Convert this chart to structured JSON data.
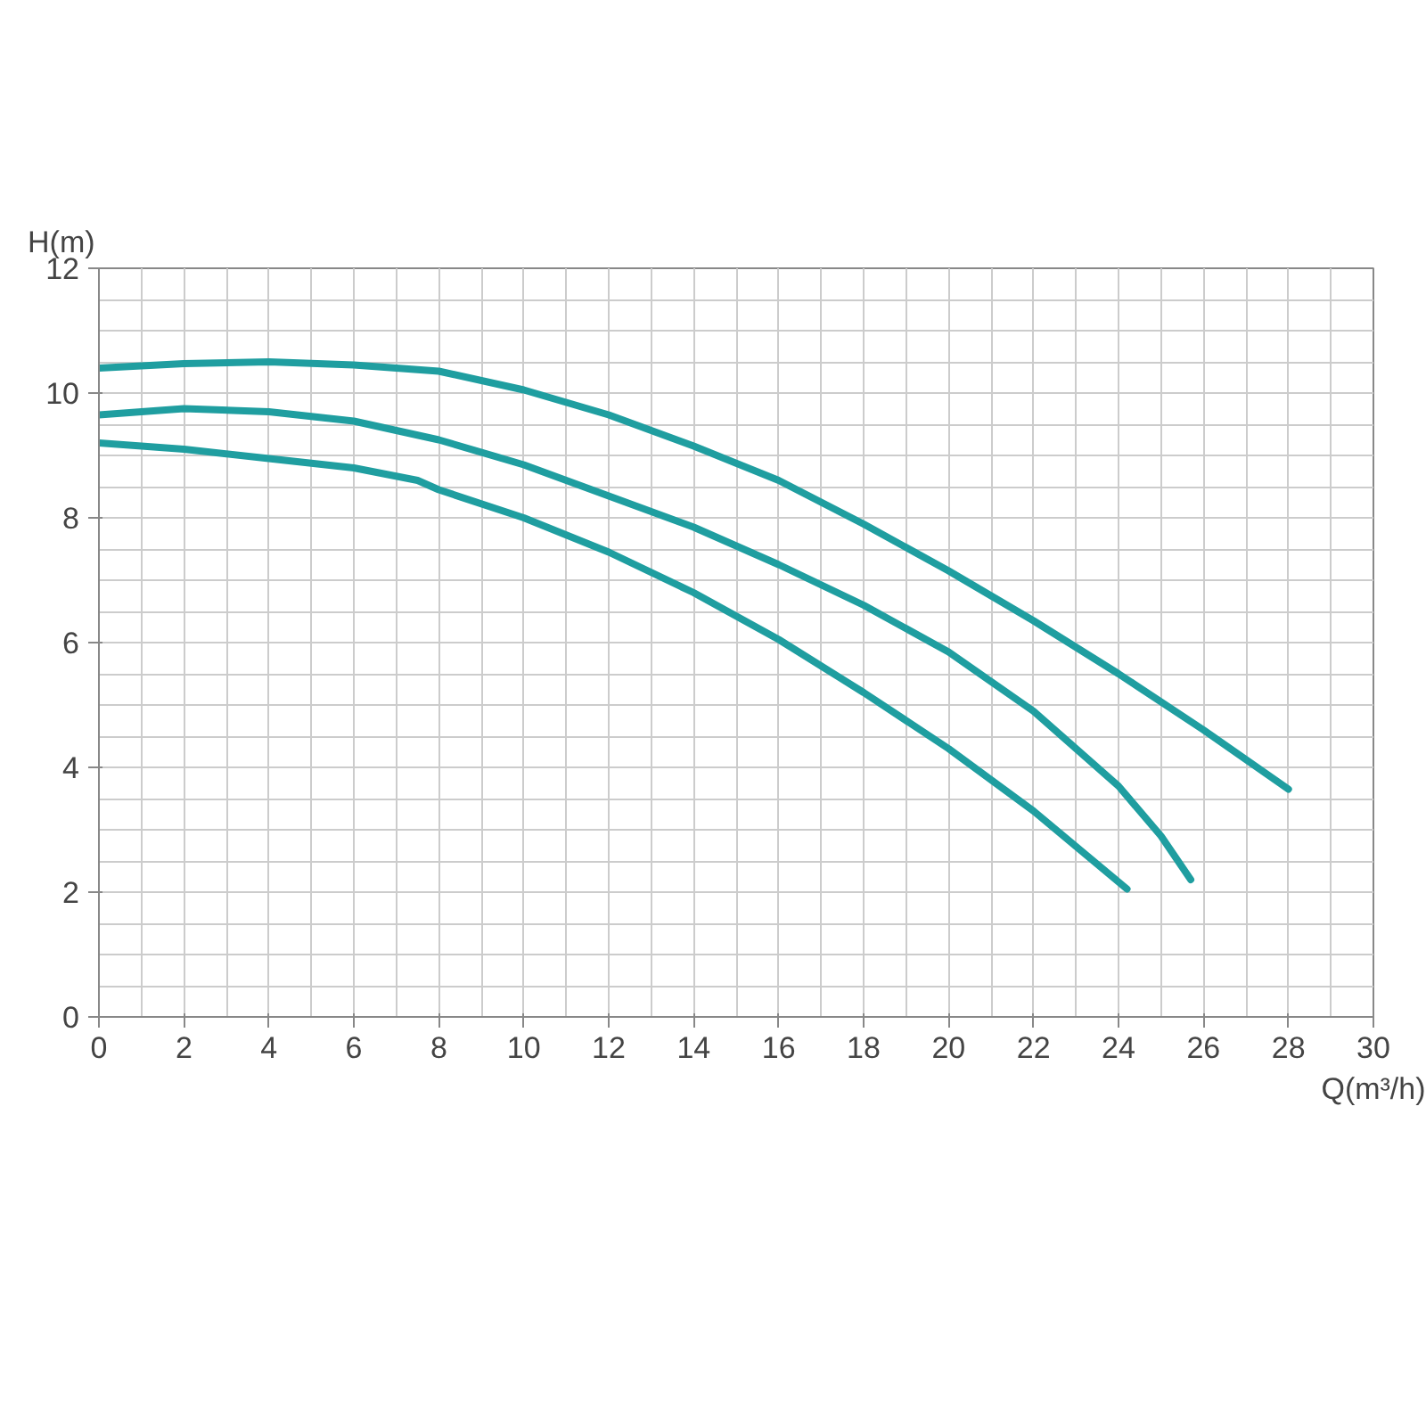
{
  "chart_data": {
    "type": "line",
    "xlabel": "Q(m³/h)",
    "ylabel": "H(m)",
    "xlim": [
      0,
      30
    ],
    "ylim": [
      0,
      12
    ],
    "xticks": [
      0,
      2,
      4,
      6,
      8,
      10,
      12,
      14,
      16,
      18,
      20,
      22,
      24,
      26,
      28,
      30
    ],
    "yticks": [
      0,
      2,
      4,
      6,
      8,
      10,
      12
    ],
    "grid": true,
    "marker": "none",
    "line_style": "solid",
    "series": [
      {
        "color": "#1f9ea0",
        "x": [
          0,
          2,
          4,
          6,
          8,
          10,
          12,
          14,
          16,
          18,
          20,
          22,
          24,
          26,
          28
        ],
        "values": [
          10.4,
          10.47,
          10.5,
          10.45,
          10.35,
          10.05,
          9.65,
          9.15,
          8.6,
          7.9,
          7.15,
          6.35,
          5.5,
          4.6,
          3.65
        ]
      },
      {
        "color": "#1f9ea0",
        "x": [
          0,
          2,
          4,
          6,
          8,
          10,
          12,
          14,
          16,
          18,
          20,
          22,
          24,
          25,
          25.7
        ],
        "values": [
          9.65,
          9.75,
          9.7,
          9.55,
          9.25,
          8.85,
          8.35,
          7.85,
          7.25,
          6.6,
          5.85,
          4.9,
          3.7,
          2.9,
          2.2
        ]
      },
      {
        "color": "#1f9ea0",
        "x": [
          0,
          2,
          4,
          6,
          7.5,
          8,
          10,
          12,
          14,
          16,
          18,
          20,
          22,
          24.2
        ],
        "values": [
          9.2,
          9.1,
          8.95,
          8.8,
          8.6,
          8.45,
          8.0,
          7.45,
          6.8,
          6.05,
          5.2,
          4.3,
          3.3,
          2.05
        ]
      }
    ]
  }
}
